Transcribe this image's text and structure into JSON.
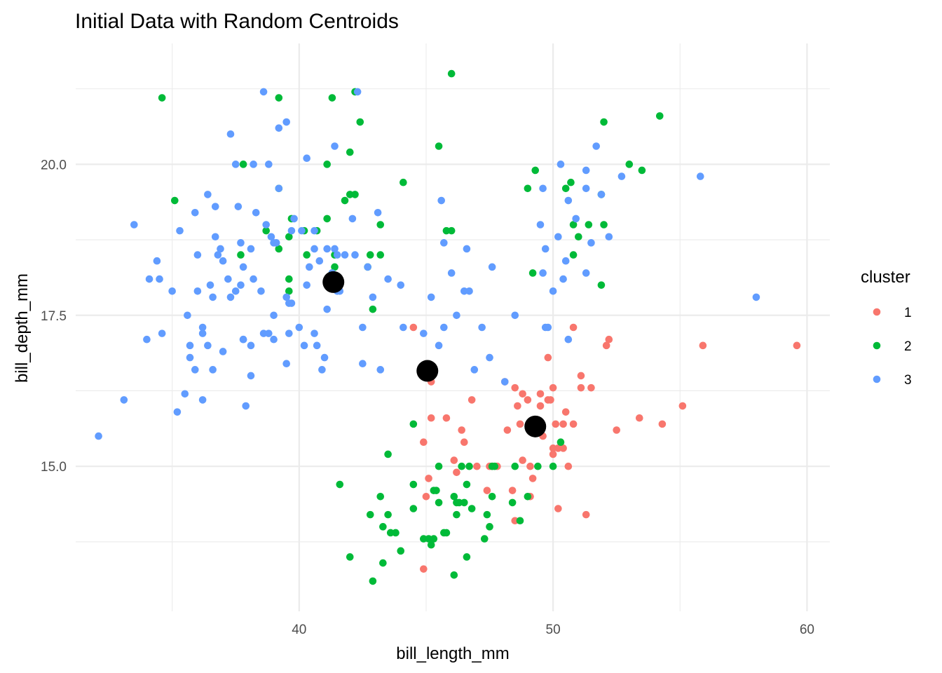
{
  "chart_data": {
    "type": "scatter",
    "title": "Initial Data with Random Centroids",
    "xlabel": "bill_length_mm",
    "ylabel": "bill_depth_mm",
    "xlim": [
      31.2,
      60.9
    ],
    "ylim": [
      12.6,
      22.0
    ],
    "xticks": [
      40,
      50,
      60
    ],
    "xticks_minor": [
      35,
      45,
      55
    ],
    "yticks": [
      15.0,
      17.5,
      20.0
    ],
    "yticks_minor": [
      13.75,
      16.25,
      18.75,
      21.25
    ],
    "grid": true,
    "legend": {
      "title": "cluster",
      "position": "right"
    },
    "colors": {
      "1": "#F8766D",
      "2": "#00BA38",
      "3": "#619CFF",
      "centroid": "#000000"
    },
    "series": [
      {
        "name": "1",
        "points": [
          [
            44.5,
            17.3
          ],
          [
            45.2,
            16.4
          ],
          [
            45.2,
            15.8
          ],
          [
            44.9,
            15.4
          ],
          [
            45.1,
            14.8
          ],
          [
            45.0,
            14.5
          ],
          [
            44.9,
            13.3
          ],
          [
            45.8,
            15.8
          ],
          [
            46.1,
            15.1
          ],
          [
            46.2,
            14.9
          ],
          [
            46.5,
            15.4
          ],
          [
            46.8,
            16.1
          ],
          [
            47.0,
            15.0
          ],
          [
            47.4,
            14.6
          ],
          [
            47.6,
            15.0
          ],
          [
            47.8,
            15.0
          ],
          [
            48.1,
            16.4
          ],
          [
            48.2,
            15.6
          ],
          [
            48.4,
            14.6
          ],
          [
            48.5,
            14.1
          ],
          [
            48.5,
            16.3
          ],
          [
            48.6,
            16.0
          ],
          [
            48.7,
            15.7
          ],
          [
            48.8,
            16.2
          ],
          [
            48.8,
            15.1
          ],
          [
            49.0,
            16.1
          ],
          [
            49.1,
            15.0
          ],
          [
            49.2,
            14.8
          ],
          [
            49.1,
            14.5
          ],
          [
            49.3,
            15.7
          ],
          [
            49.5,
            16.2
          ],
          [
            49.5,
            16.0
          ],
          [
            49.6,
            15.5
          ],
          [
            49.8,
            16.1
          ],
          [
            49.8,
            16.8
          ],
          [
            49.9,
            16.1
          ],
          [
            50.0,
            16.3
          ],
          [
            50.0,
            15.3
          ],
          [
            50.0,
            15.2
          ],
          [
            50.1,
            15.7
          ],
          [
            50.2,
            14.3
          ],
          [
            50.4,
            15.7
          ],
          [
            50.4,
            15.3
          ],
          [
            50.5,
            15.9
          ],
          [
            50.6,
            15.0
          ],
          [
            50.8,
            15.7
          ],
          [
            50.8,
            17.3
          ],
          [
            51.1,
            16.5
          ],
          [
            51.1,
            16.3
          ],
          [
            51.3,
            14.2
          ],
          [
            51.5,
            16.3
          ],
          [
            52.1,
            17.0
          ],
          [
            52.2,
            17.1
          ],
          [
            52.5,
            15.6
          ],
          [
            53.4,
            15.8
          ],
          [
            54.3,
            15.7
          ],
          [
            55.1,
            16.0
          ],
          [
            55.9,
            17.0
          ],
          [
            59.6,
            17.0
          ],
          [
            50.2,
            15.3
          ],
          [
            46.4,
            15.6
          ],
          [
            47.5,
            15.0
          ]
        ]
      },
      {
        "name": "2",
        "points": [
          [
            34.6,
            21.1
          ],
          [
            35.1,
            19.4
          ],
          [
            37.7,
            18.5
          ],
          [
            37.8,
            20.0
          ],
          [
            38.7,
            18.9
          ],
          [
            39.2,
            21.1
          ],
          [
            39.2,
            19.6
          ],
          [
            39.2,
            18.6
          ],
          [
            39.6,
            18.8
          ],
          [
            39.6,
            18.1
          ],
          [
            39.6,
            17.9
          ],
          [
            39.7,
            19.1
          ],
          [
            40.2,
            18.9
          ],
          [
            40.3,
            18.5
          ],
          [
            40.7,
            18.9
          ],
          [
            41.1,
            20.0
          ],
          [
            41.1,
            19.1
          ],
          [
            41.3,
            18.2
          ],
          [
            41.4,
            18.3
          ],
          [
            41.4,
            18.5
          ],
          [
            41.3,
            21.1
          ],
          [
            41.6,
            14.7
          ],
          [
            42.0,
            20.2
          ],
          [
            42.0,
            13.5
          ],
          [
            42.2,
            21.2
          ],
          [
            42.4,
            20.7
          ],
          [
            41.8,
            19.4
          ],
          [
            42.0,
            19.5
          ],
          [
            42.2,
            19.5
          ],
          [
            42.8,
            18.5
          ],
          [
            42.7,
            18.3
          ],
          [
            42.9,
            17.6
          ],
          [
            42.8,
            14.2
          ],
          [
            42.9,
            13.1
          ],
          [
            43.2,
            18.5
          ],
          [
            43.2,
            19.0
          ],
          [
            43.2,
            14.5
          ],
          [
            43.3,
            14.0
          ],
          [
            43.5,
            14.2
          ],
          [
            43.5,
            15.2
          ],
          [
            43.6,
            13.9
          ],
          [
            43.8,
            13.9
          ],
          [
            43.3,
            13.4
          ],
          [
            44.0,
            13.6
          ],
          [
            44.1,
            19.7
          ],
          [
            44.5,
            15.7
          ],
          [
            44.5,
            14.7
          ],
          [
            44.5,
            14.3
          ],
          [
            44.9,
            13.8
          ],
          [
            45.1,
            13.8
          ],
          [
            45.2,
            13.7
          ],
          [
            45.3,
            13.8
          ],
          [
            45.3,
            14.6
          ],
          [
            45.4,
            14.6
          ],
          [
            45.5,
            15.0
          ],
          [
            45.5,
            14.4
          ],
          [
            45.5,
            20.3
          ],
          [
            45.7,
            13.9
          ],
          [
            45.8,
            13.9
          ],
          [
            45.8,
            18.9
          ],
          [
            46.0,
            18.9
          ],
          [
            46.1,
            13.2
          ],
          [
            46.1,
            14.5
          ],
          [
            46.2,
            14.2
          ],
          [
            46.2,
            14.4
          ],
          [
            46.3,
            14.4
          ],
          [
            46.4,
            15.0
          ],
          [
            46.5,
            14.4
          ],
          [
            46.6,
            13.5
          ],
          [
            46.8,
            14.3
          ],
          [
            46.7,
            15.0
          ],
          [
            46.6,
            14.7
          ],
          [
            47.3,
            13.8
          ],
          [
            47.4,
            14.2
          ],
          [
            47.5,
            14.0
          ],
          [
            47.6,
            14.5
          ],
          [
            47.7,
            15.0
          ],
          [
            47.6,
            15.0
          ],
          [
            48.4,
            14.4
          ],
          [
            48.5,
            15.0
          ],
          [
            48.7,
            14.1
          ],
          [
            49.0,
            14.5
          ],
          [
            49.0,
            19.6
          ],
          [
            49.2,
            18.2
          ],
          [
            49.3,
            19.9
          ],
          [
            49.3,
            15.7
          ],
          [
            49.4,
            15.0
          ],
          [
            50.0,
            15.0
          ],
          [
            50.3,
            15.4
          ],
          [
            50.5,
            19.6
          ],
          [
            50.7,
            19.7
          ],
          [
            50.8,
            19.0
          ],
          [
            50.8,
            18.5
          ],
          [
            51.0,
            18.8
          ],
          [
            51.4,
            19.0
          ],
          [
            51.9,
            19.5
          ],
          [
            51.9,
            18.0
          ],
          [
            52.0,
            19.0
          ],
          [
            52.0,
            20.7
          ],
          [
            53.0,
            20.0
          ],
          [
            53.5,
            19.9
          ],
          [
            54.2,
            20.8
          ],
          [
            46.0,
            21.5
          ]
        ]
      },
      {
        "name": "3",
        "points": [
          [
            32.1,
            15.5
          ],
          [
            33.1,
            16.1
          ],
          [
            33.5,
            19.0
          ],
          [
            34.0,
            17.1
          ],
          [
            34.1,
            18.1
          ],
          [
            34.4,
            18.4
          ],
          [
            34.5,
            18.1
          ],
          [
            34.6,
            17.2
          ],
          [
            35.0,
            17.9
          ],
          [
            35.2,
            15.9
          ],
          [
            35.3,
            18.9
          ],
          [
            35.5,
            16.2
          ],
          [
            35.6,
            17.5
          ],
          [
            35.7,
            17.0
          ],
          [
            35.9,
            19.2
          ],
          [
            35.7,
            16.8
          ],
          [
            35.9,
            16.6
          ],
          [
            36.0,
            17.9
          ],
          [
            36.0,
            18.5
          ],
          [
            36.2,
            17.2
          ],
          [
            36.2,
            16.1
          ],
          [
            36.2,
            17.3
          ],
          [
            36.4,
            17.0
          ],
          [
            36.5,
            18.0
          ],
          [
            36.6,
            17.8
          ],
          [
            36.7,
            18.8
          ],
          [
            36.7,
            19.3
          ],
          [
            36.8,
            18.5
          ],
          [
            37.0,
            16.9
          ],
          [
            36.9,
            18.6
          ],
          [
            37.2,
            18.1
          ],
          [
            37.3,
            17.8
          ],
          [
            37.3,
            20.5
          ],
          [
            37.6,
            19.3
          ],
          [
            37.7,
            18.7
          ],
          [
            37.8,
            18.3
          ],
          [
            37.8,
            17.1
          ],
          [
            38.1,
            18.6
          ],
          [
            38.1,
            17.0
          ],
          [
            38.2,
            18.1
          ],
          [
            38.3,
            19.2
          ],
          [
            38.6,
            21.2
          ],
          [
            38.6,
            17.2
          ],
          [
            38.7,
            19.0
          ],
          [
            38.8,
            17.2
          ],
          [
            38.9,
            18.8
          ],
          [
            39.0,
            17.5
          ],
          [
            39.1,
            18.7
          ],
          [
            39.0,
            17.1
          ],
          [
            39.2,
            19.6
          ],
          [
            39.5,
            17.8
          ],
          [
            39.5,
            16.7
          ],
          [
            39.6,
            17.7
          ],
          [
            39.7,
            17.7
          ],
          [
            39.7,
            18.9
          ],
          [
            39.8,
            19.1
          ],
          [
            40.1,
            18.9
          ],
          [
            40.2,
            17.0
          ],
          [
            40.3,
            18.0
          ],
          [
            40.6,
            18.6
          ],
          [
            40.6,
            17.2
          ],
          [
            40.7,
            17.0
          ],
          [
            40.8,
            18.4
          ],
          [
            40.9,
            16.6
          ],
          [
            41.1,
            18.6
          ],
          [
            41.1,
            17.6
          ],
          [
            41.3,
            18.2
          ],
          [
            41.4,
            18.6
          ],
          [
            41.5,
            18.5
          ],
          [
            41.8,
            18.5
          ],
          [
            42.1,
            19.1
          ],
          [
            42.2,
            18.5
          ],
          [
            42.3,
            21.2
          ],
          [
            42.5,
            17.3
          ],
          [
            42.7,
            18.3
          ],
          [
            42.9,
            17.8
          ],
          [
            43.1,
            19.2
          ],
          [
            43.5,
            18.1
          ],
          [
            44.0,
            18.0
          ],
          [
            45.5,
            17.0
          ],
          [
            45.7,
            17.3
          ],
          [
            46.2,
            17.5
          ],
          [
            46.5,
            17.9
          ],
          [
            46.7,
            17.9
          ],
          [
            46.9,
            16.6
          ],
          [
            47.5,
            16.8
          ],
          [
            47.6,
            18.3
          ],
          [
            48.1,
            16.4
          ],
          [
            48.5,
            17.5
          ],
          [
            49.7,
            17.3
          ],
          [
            49.5,
            19.0
          ],
          [
            49.7,
            18.6
          ],
          [
            49.8,
            17.3
          ],
          [
            50.0,
            17.9
          ],
          [
            50.2,
            18.8
          ],
          [
            50.3,
            20.0
          ],
          [
            50.5,
            18.4
          ],
          [
            50.6,
            19.4
          ],
          [
            50.9,
            19.1
          ],
          [
            51.3,
            19.9
          ],
          [
            51.3,
            18.2
          ],
          [
            51.5,
            18.7
          ],
          [
            51.7,
            20.3
          ],
          [
            51.9,
            19.5
          ],
          [
            52.2,
            18.8
          ],
          [
            52.7,
            19.8
          ],
          [
            55.8,
            19.8
          ],
          [
            58.0,
            17.8
          ],
          [
            37.5,
            20.0
          ],
          [
            38.2,
            20.0
          ],
          [
            38.8,
            20.0
          ],
          [
            39.5,
            20.7
          ],
          [
            40.3,
            20.1
          ],
          [
            41.4,
            20.3
          ],
          [
            39.2,
            20.6
          ],
          [
            36.4,
            19.5
          ],
          [
            37.5,
            17.9
          ],
          [
            38.5,
            17.9
          ],
          [
            44.1,
            17.3
          ],
          [
            44.9,
            17.2
          ],
          [
            45.2,
            17.8
          ],
          [
            45.6,
            19.4
          ],
          [
            46.0,
            18.2
          ],
          [
            46.6,
            18.6
          ],
          [
            47.2,
            17.3
          ],
          [
            45.7,
            18.7
          ],
          [
            49.6,
            18.2
          ],
          [
            49.6,
            19.6
          ],
          [
            50.4,
            18.1
          ],
          [
            51.3,
            19.6
          ],
          [
            50.6,
            17.1
          ],
          [
            41.5,
            17.9
          ],
          [
            42.5,
            16.7
          ],
          [
            43.2,
            16.6
          ],
          [
            41.6,
            17.9
          ],
          [
            41.0,
            16.8
          ],
          [
            39.0,
            18.7
          ],
          [
            40.4,
            18.3
          ],
          [
            40.6,
            18.9
          ],
          [
            37.0,
            18.4
          ],
          [
            38.1,
            16.5
          ],
          [
            37.9,
            16.0
          ],
          [
            36.6,
            16.6
          ],
          [
            37.8,
            17.1
          ],
          [
            37.7,
            18.0
          ],
          [
            39.6,
            17.2
          ],
          [
            40.0,
            17.3
          ]
        ]
      }
    ],
    "centroids": [
      [
        41.35,
        18.05
      ],
      [
        45.05,
        16.58
      ],
      [
        49.3,
        15.66
      ]
    ]
  }
}
